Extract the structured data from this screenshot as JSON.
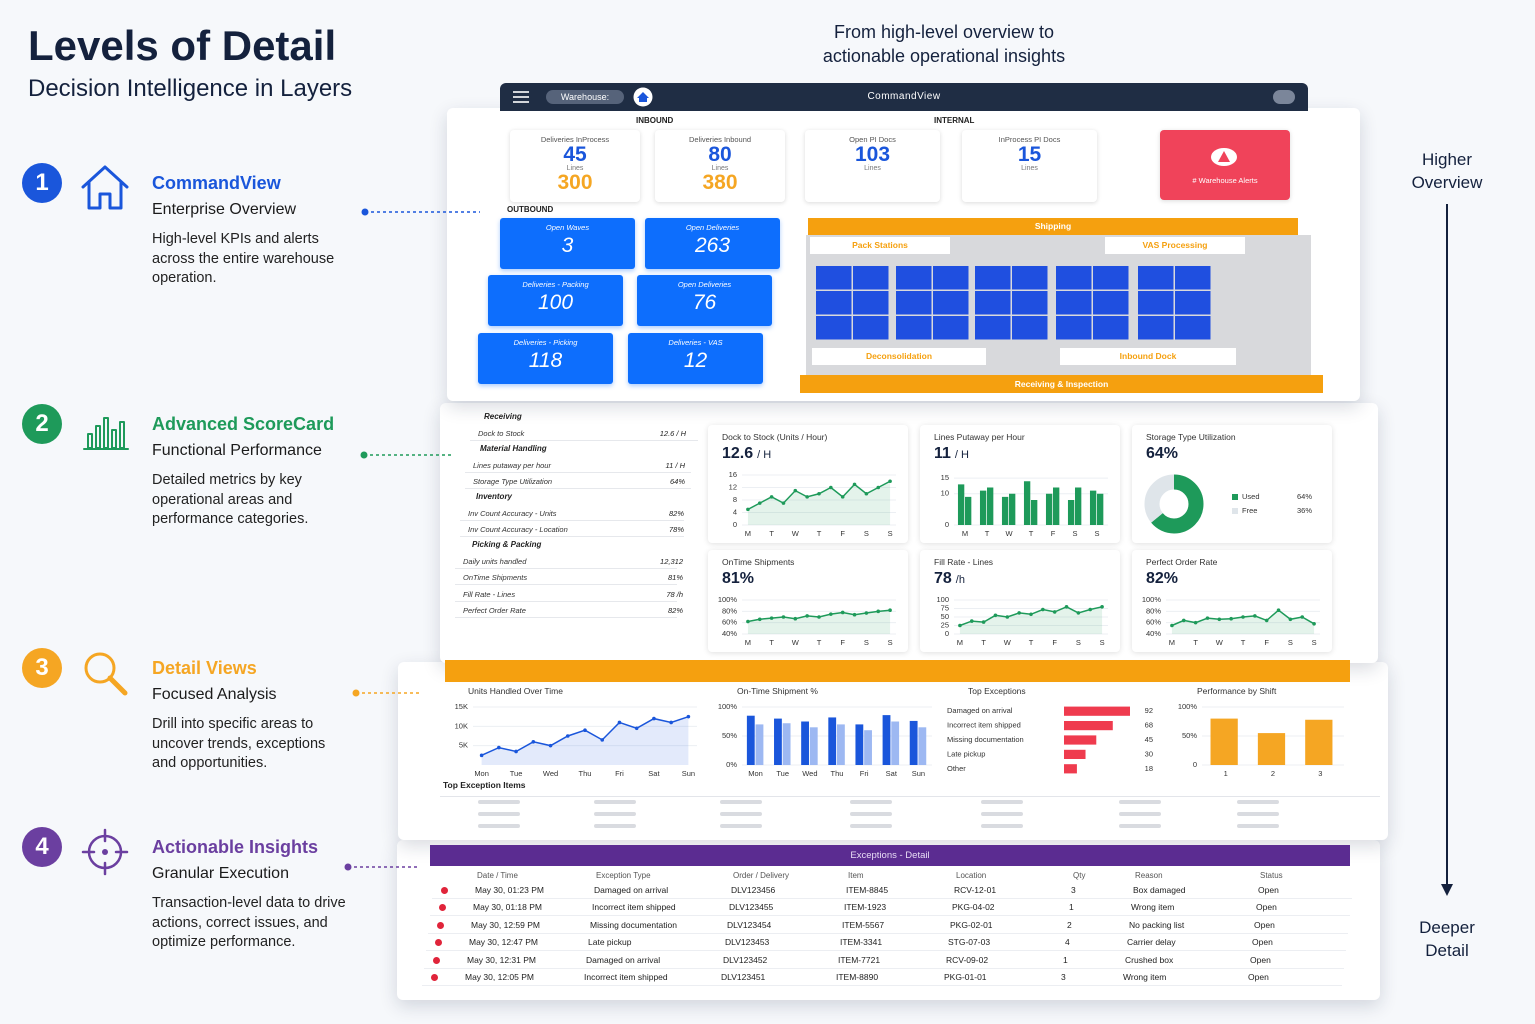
{
  "header": {
    "title": "Levels of Detail",
    "subtitle": "Decision Intelligence in Layers"
  },
  "tagline": "From high-level overview to actionable operational insights",
  "scale": {
    "top": "Higher Overview",
    "bottom": "Deeper Detail"
  },
  "levels": [
    {
      "number": 1,
      "name": "CommandView",
      "subtitle": "Enterprise Overview",
      "description": "High-level KPIs and alerts across the entire warehouse operation.",
      "color": "#1a56db"
    },
    {
      "number": 2,
      "name": "Advanced ScoreCard",
      "subtitle": "Functional Performance",
      "description": "Detailed metrics by key operational areas and performance categories.",
      "color": "#1e9a5a"
    },
    {
      "number": 3,
      "name": "Detail Views",
      "subtitle": "Focused Analysis",
      "description": "Drill into specific areas to uncover trends, exceptions and opportunities.",
      "color": "#f5a623"
    },
    {
      "number": 4,
      "name": "Actionable Insights",
      "subtitle": "Granular Execution",
      "description": "Transaction-level data to drive actions, correct issues, and optimize performance.",
      "color": "#6b3fa0"
    }
  ],
  "commandview": {
    "title": "CommandView",
    "warehouse_label": "Warehouse:",
    "inbound_label": "INBOUND",
    "internal_label": "INTERNAL",
    "outbound_label": "OUTBOUND",
    "inbound": [
      {
        "label": "Deliveries InProcess",
        "value": 45,
        "unit": "Lines",
        "value2": 300
      },
      {
        "label": "Deliveries Inbound",
        "value": 80,
        "unit": "Lines",
        "value2": 380
      }
    ],
    "internal": [
      {
        "label": "Open PI Docs",
        "value": 103,
        "unit": "Lines"
      },
      {
        "label": "InProcess PI Docs",
        "value": 15,
        "unit": "Lines"
      }
    ],
    "alert": "# Warehouse Alerts",
    "outbound": [
      {
        "label": "Open Waves",
        "value": 3
      },
      {
        "label": "Open Deliveries",
        "value": 263
      },
      {
        "label": "Deliveries - Packing",
        "value": 100
      },
      {
        "label": "Open Deliveries",
        "value": 76
      },
      {
        "label": "Deliveries - Picking",
        "value": 118
      },
      {
        "label": "Deliveries - VAS",
        "value": 12
      }
    ],
    "shipping": "Shipping",
    "zones": [
      "Pack Stations",
      "VAS Processing",
      "Deconsolidation",
      "Inbound Dock"
    ],
    "receiving": "Receiving & Inspection"
  },
  "scorecard": {
    "table": [
      {
        "name": "Receiving",
        "rows": [
          [
            "Dock to Stock",
            "12.6 / H"
          ]
        ]
      },
      {
        "name": "Material Handling",
        "rows": [
          [
            "Lines putaway per hour",
            "11 / H"
          ],
          [
            "Storage Type Utilization",
            "64%"
          ]
        ]
      },
      {
        "name": "Inventory",
        "rows": [
          [
            "Inv Count Accuracy - Units",
            "82%"
          ],
          [
            "Inv Count Accuracy - Location",
            "78%"
          ]
        ]
      },
      {
        "name": "Picking & Packing",
        "rows": [
          [
            "Daily units handled",
            "12,312"
          ],
          [
            "OnTime Shipments",
            "81%"
          ],
          [
            "Fill Rate - Lines",
            "78 /h"
          ],
          [
            "Perfect Order Rate",
            "82%"
          ]
        ]
      }
    ],
    "cards": [
      {
        "title": "Dock to Stock (Units / Hour)",
        "value": 12.6,
        "unit": "/ H",
        "chart": {
          "type": "line",
          "color": "#1e9a5a",
          "categories": [
            "M",
            null,
            "T",
            null,
            "W",
            null,
            "T",
            null,
            "F",
            null,
            "S",
            null,
            "S"
          ],
          "values": [
            5,
            7,
            9,
            7,
            11,
            9,
            10,
            12,
            9,
            13,
            10,
            12,
            14
          ],
          "ylim": [
            0,
            16
          ],
          "yticks": [
            0,
            4,
            8,
            12,
            16
          ]
        }
      },
      {
        "title": "Lines Putaway per Hour",
        "value": 11,
        "unit": "/ H",
        "chart": {
          "type": "bar",
          "categories": [
            "M",
            "T",
            "W",
            "T",
            "F",
            "S",
            "S"
          ],
          "series": [
            {
              "color": "#1e9a5a",
              "values": [
                13,
                11,
                9,
                14,
                10,
                8,
                11
              ]
            },
            {
              "color": "#1e9a5a",
              "values": [
                9,
                12,
                10,
                8,
                12,
                12,
                10
              ]
            }
          ],
          "ylim": [
            0,
            16
          ],
          "yticks": [
            0,
            10,
            15
          ]
        }
      },
      {
        "title": "Storage Type Utilization",
        "value": "64%",
        "chart": {
          "type": "donut",
          "categories": [
            "Used",
            "Free"
          ],
          "values": [
            64,
            36
          ],
          "value_labels": [
            "64%",
            "36%"
          ],
          "colors": [
            "#1e9a5a",
            "#dfe5ea"
          ]
        }
      },
      {
        "title": "OnTime Shipments",
        "value": "81%",
        "chart": {
          "type": "line",
          "color": "#1e9a5a",
          "categories": [
            "M",
            null,
            "T",
            null,
            "W",
            null,
            "T",
            null,
            "F",
            null,
            "S",
            null,
            "S"
          ],
          "values": [
            62,
            66,
            68,
            70,
            67,
            72,
            70,
            75,
            78,
            74,
            77,
            80,
            82
          ],
          "ylim": [
            40,
            100
          ],
          "yticks": [
            {
              "value": 40,
              "label": "40%"
            },
            {
              "value": 60,
              "label": "60%"
            },
            {
              "value": 80,
              "label": "80%"
            },
            {
              "value": 100,
              "label": "100%"
            }
          ]
        }
      },
      {
        "title": "Fill Rate - Lines",
        "value": 78,
        "unit": "/h",
        "chart": {
          "type": "line",
          "color": "#1e9a5a",
          "categories": [
            "M",
            null,
            "T",
            null,
            "W",
            null,
            "T",
            null,
            "F",
            null,
            "S",
            null,
            "S"
          ],
          "values": [
            25,
            38,
            35,
            55,
            50,
            62,
            58,
            72,
            65,
            80,
            62,
            72,
            80
          ],
          "ylim": [
            0,
            100
          ],
          "yticks": [
            0,
            25,
            50,
            75,
            100
          ]
        }
      },
      {
        "title": "Perfect Order Rate",
        "value": "82%",
        "chart": {
          "type": "line",
          "color": "#1e9a5a",
          "categories": [
            "M",
            null,
            "T",
            null,
            "W",
            null,
            "T",
            null,
            "F",
            null,
            "S",
            null,
            "S"
          ],
          "values": [
            55,
            64,
            60,
            68,
            66,
            67,
            70,
            72,
            64,
            82,
            66,
            70,
            58
          ],
          "ylim": [
            40,
            100
          ],
          "yticks": [
            {
              "value": 40,
              "label": "40%"
            },
            {
              "value": 60,
              "label": "60%"
            },
            {
              "value": 80,
              "label": "80%"
            },
            {
              "value": 100,
              "label": "100%"
            }
          ]
        }
      }
    ]
  },
  "details": {
    "cards": [
      {
        "title": "Units Handled Over Time",
        "chart": {
          "type": "line",
          "color": "#1a56db",
          "categories": [
            "Mon",
            null,
            "Tue",
            null,
            "Wed",
            null,
            "Thu",
            null,
            "Fri",
            null,
            "Sat",
            null,
            "Sun"
          ],
          "values": [
            2500,
            4500,
            3500,
            6000,
            5000,
            7500,
            9000,
            6500,
            11000,
            9500,
            12000,
            11000,
            12500
          ],
          "ylim": [
            0,
            15000
          ],
          "yticks": [
            {
              "value": 5000,
              "label": "5K"
            },
            {
              "value": 10000,
              "label": "10K"
            },
            {
              "value": 15000,
              "label": "15K"
            }
          ]
        }
      },
      {
        "title": "On-Time Shipment %",
        "chart": {
          "type": "bar",
          "categories": [
            "Mon",
            "Tue",
            "Wed",
            "Thu",
            "Fri",
            "Sat",
            "Sun"
          ],
          "series": [
            {
              "color": "#1a56db",
              "values": [
                85,
                80,
                75,
                82,
                70,
                86,
                76
              ]
            },
            {
              "color": "#9db8f2",
              "values": [
                70,
                72,
                65,
                70,
                60,
                75,
                65
              ]
            }
          ],
          "ylim": [
            0,
            100
          ],
          "yticks": [
            {
              "value": 0,
              "label": "0%"
            },
            {
              "value": 50,
              "label": "50%"
            },
            {
              "value": 100,
              "label": "100%"
            }
          ]
        }
      },
      {
        "title": "Top Exceptions",
        "chart": {
          "type": "hbar",
          "color": "#ef3b4e",
          "categories": [
            "Damaged on arrival",
            "Incorrect item shipped",
            "Missing documentation",
            "Late pickup",
            "Other"
          ],
          "values": [
            92,
            68,
            45,
            30,
            18
          ]
        }
      },
      {
        "title": "Performance by Shift",
        "chart": {
          "type": "bar",
          "color": "#f5a623",
          "categories": [
            "1",
            "2",
            "3"
          ],
          "values": [
            80,
            55,
            78
          ],
          "ylim": [
            0,
            100
          ],
          "yticks": [
            0,
            {
              "value": 50,
              "label": "50%"
            },
            {
              "value": 100,
              "label": "100%"
            }
          ]
        }
      }
    ],
    "items_title": "Top Exception Items"
  },
  "insights": {
    "title": "Exceptions - Detail",
    "columns": [
      "Date / Time",
      "Exception Type",
      "Order / Delivery",
      "Item",
      "Location",
      "Qty",
      "Reason",
      "Status"
    ],
    "rows": [
      [
        "May 30, 01:23 PM",
        "Damaged on arrival",
        "DLV123456",
        "ITEM-8845",
        "RCV-12-01",
        3,
        "Box damaged",
        "Open"
      ],
      [
        "May 30, 01:18 PM",
        "Incorrect item shipped",
        "DLV123455",
        "ITEM-1923",
        "PKG-04-02",
        1,
        "Wrong item",
        "Open"
      ],
      [
        "May 30, 12:59 PM",
        "Missing documentation",
        "DLV123454",
        "ITEM-5567",
        "PKG-02-01",
        2,
        "No packing list",
        "Open"
      ],
      [
        "May 30, 12:47 PM",
        "Late pickup",
        "DLV123453",
        "ITEM-3341",
        "STG-07-03",
        4,
        "Carrier delay",
        "Open"
      ],
      [
        "May 30, 12:31 PM",
        "Damaged on arrival",
        "DLV123452",
        "ITEM-7721",
        "RCV-09-02",
        1,
        "Crushed box",
        "Open"
      ],
      [
        "May 30, 12:05 PM",
        "Incorrect item shipped",
        "DLV123451",
        "ITEM-8890",
        "PKG-01-01",
        3,
        "Wrong item",
        "Open"
      ]
    ]
  }
}
